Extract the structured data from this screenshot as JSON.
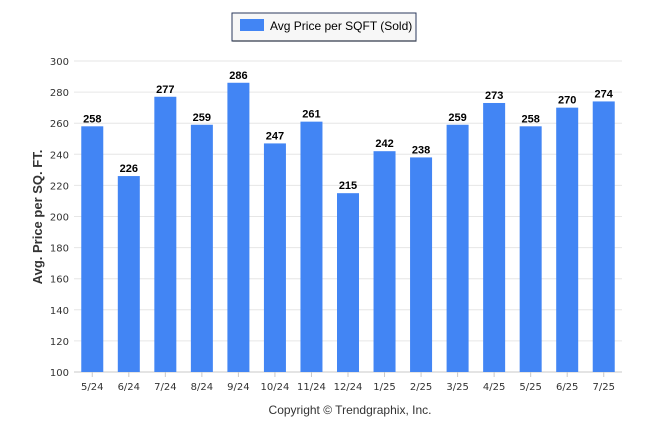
{
  "chart_data": {
    "type": "bar",
    "title": "",
    "xlabel": "",
    "ylabel": "Avg. Price per SQ. FT.",
    "categories": [
      "5/24",
      "6/24",
      "7/24",
      "8/24",
      "9/24",
      "10/24",
      "11/24",
      "12/24",
      "1/25",
      "2/25",
      "3/25",
      "4/25",
      "5/25",
      "6/25",
      "7/25"
    ],
    "series": [
      {
        "name": "Avg Price per SQFT (Sold)",
        "values": [
          258,
          226,
          277,
          259,
          286,
          247,
          261,
          215,
          242,
          238,
          259,
          273,
          258,
          270,
          274
        ],
        "color": "#4285f4"
      }
    ],
    "ylim": [
      100,
      300
    ],
    "yticks": [
      100,
      120,
      140,
      160,
      180,
      200,
      220,
      240,
      260,
      280,
      300
    ],
    "grid": true,
    "legend_position": "top-center",
    "footer": "Copyright © Trendgraphix, Inc."
  }
}
